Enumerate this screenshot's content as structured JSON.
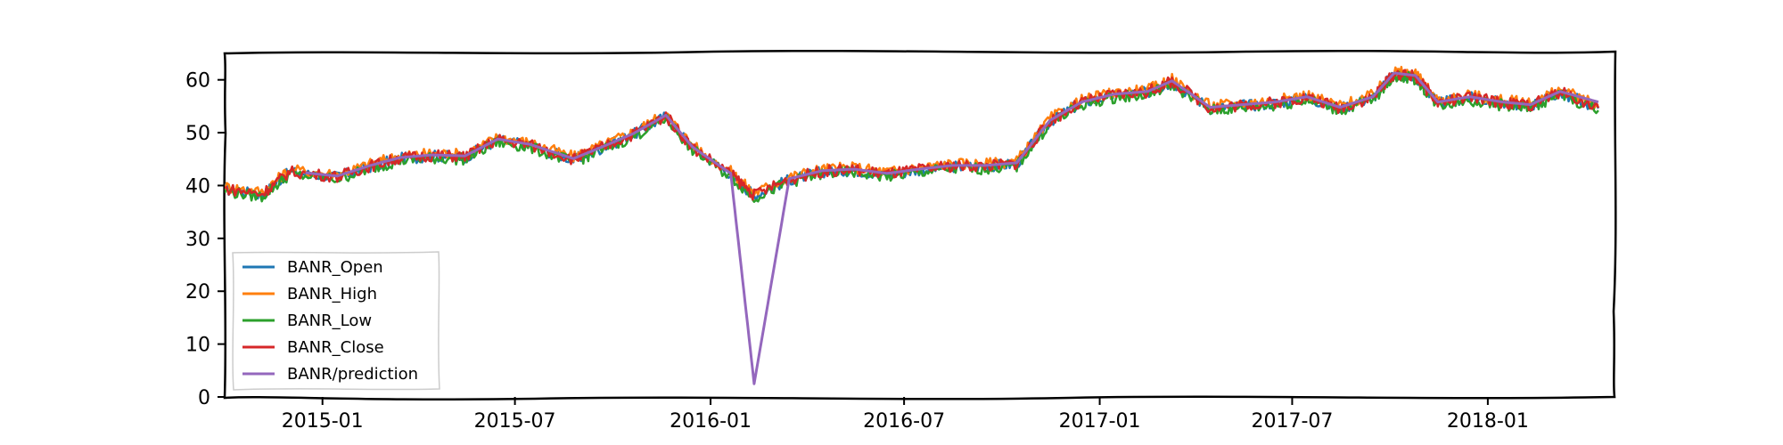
{
  "chart_data": {
    "type": "line",
    "title": "",
    "xlabel": "",
    "ylabel": "",
    "ylim": [
      0,
      65
    ],
    "xlim": [
      "2014-10-01",
      "2018-05-01"
    ],
    "y_ticks": [
      0,
      10,
      20,
      30,
      40,
      50,
      60
    ],
    "x_ticks": [
      "2015-01",
      "2015-07",
      "2016-01",
      "2016-07",
      "2017-01",
      "2017-07",
      "2018-01"
    ],
    "grid": false,
    "legend_position": "lower-left",
    "anchor_dates": [
      "2014-10-01",
      "2014-11-05",
      "2014-12-01",
      "2015-01-15",
      "2015-02-15",
      "2015-03-15",
      "2015-04-15",
      "2015-05-15",
      "2015-06-15",
      "2015-07-15",
      "2015-08-25",
      "2015-09-15",
      "2015-10-20",
      "2015-11-20",
      "2015-12-15",
      "2016-01-20",
      "2016-02-11",
      "2016-03-15",
      "2016-04-15",
      "2016-05-15",
      "2016-06-15",
      "2016-07-15",
      "2016-08-15",
      "2016-09-15",
      "2016-10-15",
      "2016-11-15",
      "2016-12-15",
      "2017-01-15",
      "2017-02-15",
      "2017-03-10",
      "2017-04-15",
      "2017-05-15",
      "2017-06-15",
      "2017-07-15",
      "2017-08-15",
      "2017-09-15",
      "2017-10-05",
      "2017-10-25",
      "2017-11-15",
      "2017-12-15",
      "2018-01-15",
      "2018-02-10",
      "2018-03-10",
      "2018-04-15"
    ],
    "series": [
      {
        "name": "BANR_Open",
        "color": "#1f77b4",
        "values": [
          39.3,
          38.3,
          42.5,
          41.6,
          43.6,
          45.1,
          45.6,
          45.4,
          48.6,
          47.6,
          44.9,
          46.6,
          49.6,
          53.1,
          47.1,
          42.1,
          38.1,
          41.1,
          42.6,
          42.9,
          42.1,
          42.9,
          43.6,
          43.6,
          44.1,
          52.1,
          55.6,
          57.1,
          57.6,
          59.6,
          54.6,
          55.1,
          55.6,
          56.6,
          54.6,
          56.6,
          61.1,
          60.6,
          55.6,
          56.6,
          55.6,
          55.1,
          57.6,
          54.6
        ]
      },
      {
        "name": "BANR_High",
        "color": "#ff7f0e",
        "values": [
          39.8,
          38.8,
          43.0,
          42.1,
          44.1,
          45.6,
          46.1,
          45.9,
          49.1,
          48.1,
          45.4,
          47.1,
          50.1,
          53.6,
          47.6,
          42.6,
          38.6,
          41.6,
          43.1,
          43.4,
          42.6,
          43.4,
          44.1,
          44.1,
          44.6,
          52.6,
          56.1,
          57.6,
          58.1,
          60.1,
          55.1,
          55.6,
          56.1,
          57.1,
          55.1,
          57.1,
          61.6,
          61.1,
          56.1,
          57.1,
          56.1,
          55.6,
          58.1,
          55.1
        ]
      },
      {
        "name": "BANR_Low",
        "color": "#2ca02c",
        "values": [
          38.9,
          37.9,
          42.1,
          41.2,
          43.2,
          44.7,
          45.2,
          45.0,
          48.2,
          47.2,
          44.5,
          46.2,
          49.2,
          52.7,
          46.7,
          41.7,
          37.7,
          40.7,
          42.2,
          42.5,
          41.7,
          42.5,
          43.2,
          43.2,
          43.7,
          51.7,
          55.2,
          56.7,
          57.2,
          59.2,
          54.2,
          54.7,
          55.2,
          56.2,
          54.2,
          56.2,
          60.7,
          60.2,
          55.2,
          56.2,
          55.2,
          54.7,
          57.2,
          54.2
        ]
      },
      {
        "name": "BANR_Close",
        "color": "#d62728",
        "values": [
          39.4,
          38.4,
          42.6,
          41.7,
          43.7,
          45.2,
          45.7,
          45.5,
          48.7,
          47.7,
          45.0,
          46.7,
          49.7,
          53.2,
          47.2,
          42.2,
          38.2,
          41.2,
          42.7,
          43.0,
          42.2,
          43.0,
          43.7,
          43.7,
          44.2,
          52.2,
          55.7,
          57.2,
          57.7,
          59.7,
          54.7,
          55.2,
          55.7,
          56.7,
          54.7,
          56.7,
          61.2,
          60.7,
          55.7,
          56.7,
          55.7,
          55.2,
          57.7,
          54.7
        ]
      },
      {
        "name": "BANR/prediction",
        "color": "#9467bd",
        "start_date": "2014-12-15",
        "values": [
          39.5,
          38.5,
          42.7,
          41.8,
          43.8,
          45.3,
          45.8,
          45.6,
          48.8,
          47.8,
          45.1,
          46.8,
          49.8,
          53.3,
          47.3,
          42.3,
          2.5,
          41.3,
          42.8,
          43.1,
          42.3,
          43.1,
          43.8,
          43.8,
          44.3,
          52.3,
          55.8,
          57.3,
          57.8,
          59.8,
          54.8,
          55.3,
          55.8,
          56.8,
          54.8,
          56.8,
          61.3,
          60.8,
          55.8,
          56.8,
          55.8,
          55.3,
          57.8,
          55.8
        ]
      }
    ]
  }
}
